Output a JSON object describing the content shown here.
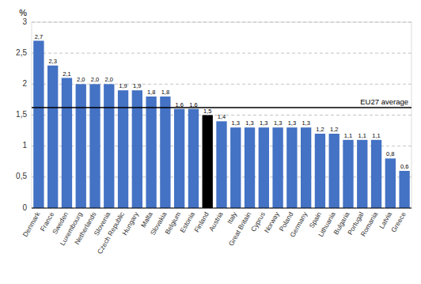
{
  "chart_data": {
    "type": "bar",
    "y_label": "%",
    "categories": [
      "Denmark",
      "France",
      "Sweden",
      "Luxembourg",
      "Netherlands",
      "Slovenia",
      "Czech Republic",
      "Hungary",
      "Malta",
      "Slovakia",
      "Belgium",
      "Estonia",
      "Finland",
      "Austria",
      "Italy",
      "Great Britain",
      "Cyprus",
      "Norway",
      "Poland",
      "Germany",
      "Spain",
      "Lithuania",
      "Bulgaria",
      "Portugal",
      "Romania",
      "Latvia",
      "Greece"
    ],
    "values": [
      2.7,
      2.3,
      2.1,
      2.0,
      2.0,
      2.0,
      1.9,
      1.9,
      1.8,
      1.8,
      1.6,
      1.6,
      1.5,
      1.4,
      1.3,
      1.3,
      1.3,
      1.3,
      1.3,
      1.3,
      1.2,
      1.2,
      1.1,
      1.1,
      1.1,
      0.8,
      0.6
    ],
    "value_labels": [
      "2,7",
      "2,3",
      "2,1",
      "2,0",
      "2,0",
      "2,0",
      "1,9",
      "1,9",
      "1,8",
      "1,8",
      "1,6",
      "1,6",
      "1,5",
      "1,4",
      "1,3",
      "1,3",
      "1,3",
      "1,3",
      "1,3",
      "1,3",
      "1,2",
      "1,2",
      "1,1",
      "1,1",
      "1,1",
      "0,8",
      "0,6"
    ],
    "colors": [
      "#4472C4",
      "#4472C4",
      "#4472C4",
      "#4472C4",
      "#4472C4",
      "#4472C4",
      "#4472C4",
      "#4472C4",
      "#4472C4",
      "#4472C4",
      "#4472C4",
      "#4472C4",
      "#000000",
      "#4472C4",
      "#4472C4",
      "#4472C4",
      "#4472C4",
      "#4472C4",
      "#4472C4",
      "#4472C4",
      "#4472C4",
      "#4472C4",
      "#4472C4",
      "#4472C4",
      "#4472C4",
      "#4472C4",
      "#4472C4"
    ],
    "annotations": [
      {
        "value": 1.62,
        "label": "EU27 average"
      }
    ],
    "ylim": [
      0,
      3.0
    ],
    "yticks": [
      0,
      {
        "value": 0.5,
        "label": "0,5"
      },
      1,
      {
        "value": 1.5,
        "label": "1,5"
      },
      2,
      {
        "value": 2.5,
        "label": "2,5"
      },
      3
    ],
    "grid": true,
    "data_labels": true
  }
}
